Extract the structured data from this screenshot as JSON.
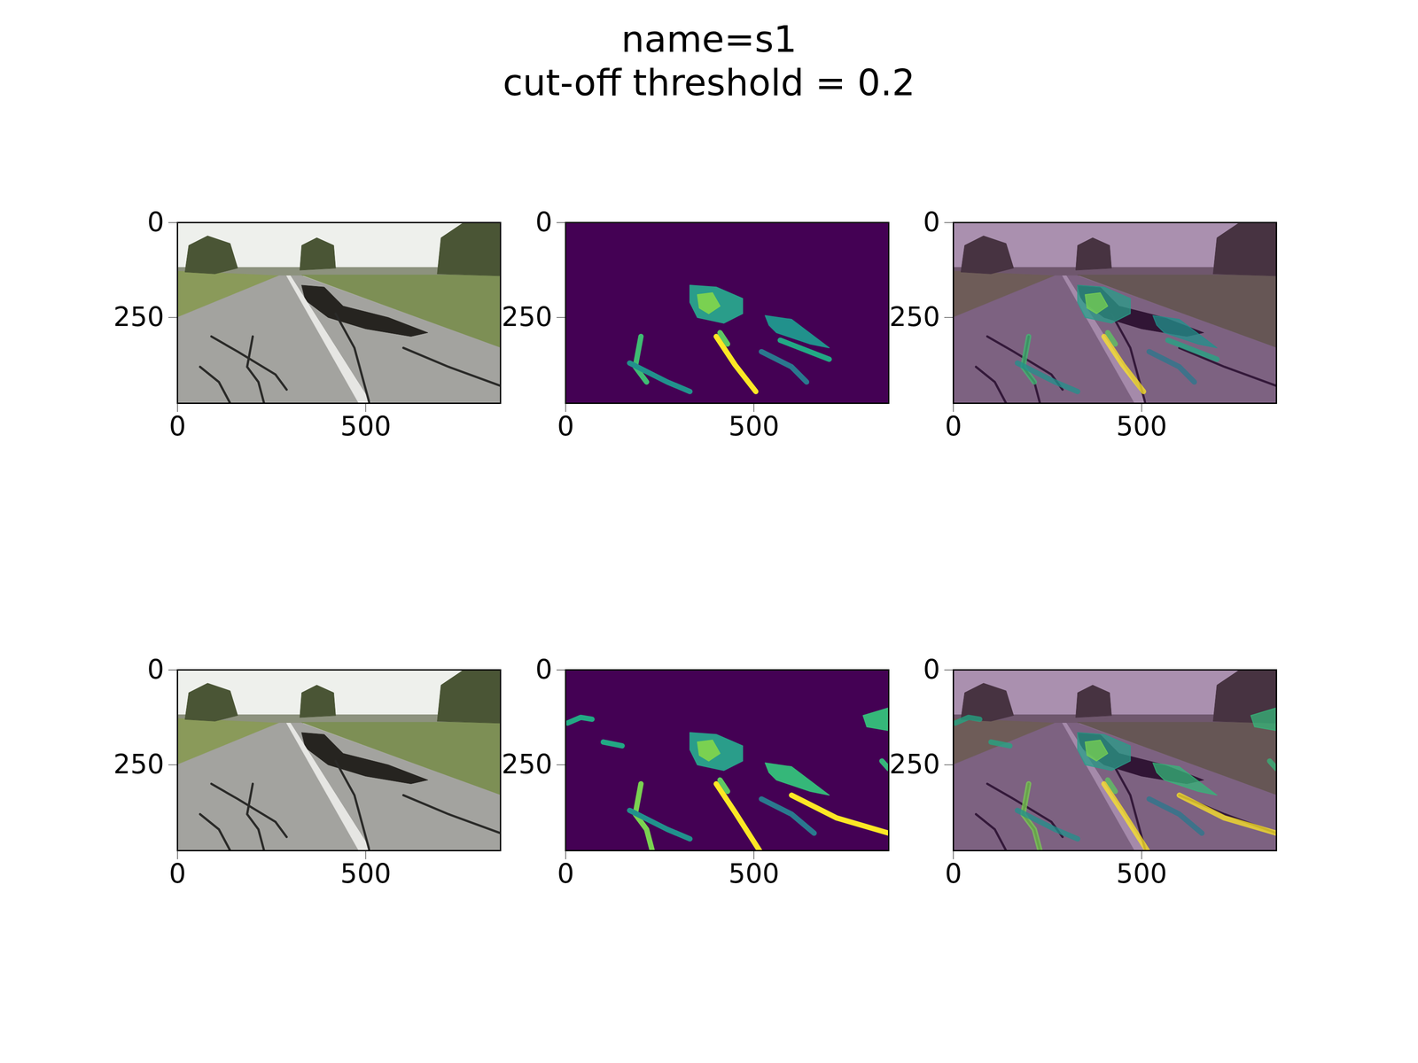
{
  "chart_data": {
    "type": "image_grid",
    "title": "name=s1",
    "subtitle": "cut-off threshold = 0.2",
    "xlim": [
      0,
      858
    ],
    "ylim": [
      476,
      0
    ],
    "xticks": [
      0,
      500
    ],
    "yticks": [
      0,
      250
    ],
    "columns": [
      {
        "type": "photo"
      },
      {
        "type": "heatmap",
        "color": "#440154"
      },
      {
        "type": "overlay",
        "color": "#440154"
      }
    ],
    "scene": {
      "regions": [
        {
          "color": "#eef0ec",
          "points": [
            [
              0,
              0
            ],
            [
              858,
              0
            ],
            [
              858,
              476
            ],
            [
              0,
              476
            ]
          ]
        },
        {
          "color": "#8d927e",
          "points": [
            [
              0,
              118
            ],
            [
              858,
              118
            ],
            [
              858,
              140
            ],
            [
              0,
              140
            ]
          ]
        },
        {
          "color": "#8a9a5a",
          "points": [
            [
              0,
              128
            ],
            [
              270,
              140
            ],
            [
              120,
              210
            ],
            [
              0,
              250
            ]
          ]
        },
        {
          "color": "#7d8f55",
          "points": [
            [
              330,
              138
            ],
            [
              858,
              138
            ],
            [
              858,
              330
            ]
          ]
        },
        {
          "color": "#a3a39f",
          "points": [
            [
              270,
              140
            ],
            [
              330,
              140
            ],
            [
              858,
              330
            ],
            [
              858,
              476
            ],
            [
              0,
              476
            ],
            [
              0,
              250
            ]
          ]
        },
        {
          "color": "#4a5535",
          "points": [
            [
              20,
              130
            ],
            [
              30,
              60
            ],
            [
              80,
              35
            ],
            [
              140,
              55
            ],
            [
              160,
              120
            ],
            [
              100,
              135
            ]
          ]
        },
        {
          "color": "#4a5535",
          "points": [
            [
              325,
              125
            ],
            [
              330,
              60
            ],
            [
              370,
              40
            ],
            [
              415,
              60
            ],
            [
              420,
              120
            ]
          ]
        },
        {
          "color": "#4a5535",
          "points": [
            [
              690,
              135
            ],
            [
              700,
              40
            ],
            [
              760,
              0
            ],
            [
              858,
              0
            ],
            [
              858,
              140
            ]
          ]
        },
        {
          "color": "#262420",
          "points": [
            [
              330,
              165
            ],
            [
              390,
              170
            ],
            [
              440,
              220
            ],
            [
              560,
              250
            ],
            [
              665,
              290
            ],
            [
              620,
              300
            ],
            [
              500,
              280
            ],
            [
              400,
              250
            ],
            [
              340,
              205
            ]
          ]
        },
        {
          "color": "#e6e6e3",
          "points": [
            [
              290,
              140
            ],
            [
              300,
              140
            ],
            [
              515,
              476
            ],
            [
              482,
              476
            ]
          ]
        }
      ],
      "cracks": [
        {
          "color": "#2a2a28",
          "points": [
            [
              90,
              300
            ],
            [
              160,
              340
            ],
            [
              260,
              400
            ],
            [
              290,
              440
            ]
          ]
        },
        {
          "color": "#2a2a28",
          "points": [
            [
              420,
              240
            ],
            [
              470,
              330
            ],
            [
              510,
              476
            ]
          ]
        },
        {
          "color": "#2a2a28",
          "points": [
            [
              600,
              330
            ],
            [
              720,
              380
            ],
            [
              858,
              430
            ]
          ]
        },
        {
          "color": "#2a2a28",
          "points": [
            [
              200,
              300
            ],
            [
              185,
              380
            ],
            [
              215,
              420
            ],
            [
              230,
              476
            ]
          ]
        },
        {
          "color": "#2a2a28",
          "points": [
            [
              60,
              380
            ],
            [
              110,
              420
            ],
            [
              140,
              476
            ]
          ]
        }
      ]
    },
    "rows": [
      {
        "patches": [
          {
            "color": "#2a9d8a",
            "points": [
              [
                330,
                165
              ],
              [
                400,
                170
              ],
              [
                470,
                200
              ],
              [
                470,
                240
              ],
              [
                420,
                265
              ],
              [
                350,
                250
              ],
              [
                330,
                210
              ]
            ]
          },
          {
            "color": "#7ad151",
            "points": [
              [
                350,
                190
              ],
              [
                390,
                185
              ],
              [
                410,
                220
              ],
              [
                380,
                240
              ],
              [
                355,
                225
              ]
            ]
          },
          {
            "color": "#21918c",
            "points": [
              [
                530,
                245
              ],
              [
                600,
                255
              ],
              [
                700,
                330
              ],
              [
                650,
                320
              ],
              [
                560,
                290
              ],
              [
                540,
                270
              ]
            ]
          }
        ],
        "traces": [
          {
            "color": "#fde725",
            "points": [
              [
                400,
                300
              ],
              [
                450,
                375
              ],
              [
                505,
                445
              ]
            ]
          },
          {
            "color": "#5ec962",
            "points": [
              [
                410,
                290
              ],
              [
                430,
                320
              ]
            ]
          },
          {
            "color": "#3fbc73",
            "points": [
              [
                200,
                300
              ],
              [
                185,
                380
              ],
              [
                215,
                420
              ]
            ]
          },
          {
            "color": "#21918c",
            "points": [
              [
                170,
                370
              ],
              [
                270,
                420
              ],
              [
                330,
                445
              ]
            ]
          },
          {
            "color": "#2a788e",
            "points": [
              [
                520,
                340
              ],
              [
                600,
                380
              ],
              [
                640,
                420
              ]
            ]
          },
          {
            "color": "#22a884",
            "points": [
              [
                570,
                310
              ],
              [
                700,
                360
              ]
            ]
          }
        ]
      },
      {
        "patches": [
          {
            "color": "#2a9d8a",
            "points": [
              [
                330,
                165
              ],
              [
                400,
                170
              ],
              [
                470,
                200
              ],
              [
                470,
                240
              ],
              [
                420,
                265
              ],
              [
                350,
                250
              ],
              [
                330,
                210
              ]
            ]
          },
          {
            "color": "#7ad151",
            "points": [
              [
                350,
                190
              ],
              [
                390,
                185
              ],
              [
                410,
                220
              ],
              [
                380,
                240
              ],
              [
                355,
                225
              ]
            ]
          },
          {
            "color": "#35b779",
            "points": [
              [
                530,
                245
              ],
              [
                600,
                255
              ],
              [
                700,
                330
              ],
              [
                650,
                320
              ],
              [
                560,
                290
              ],
              [
                540,
                270
              ]
            ]
          },
          {
            "color": "#35b779",
            "points": [
              [
                790,
                120
              ],
              [
                858,
                100
              ],
              [
                858,
                160
              ],
              [
                800,
                150
              ]
            ]
          }
        ],
        "traces": [
          {
            "color": "#fde725",
            "points": [
              [
                400,
                300
              ],
              [
                450,
                375
              ],
              [
                515,
                476
              ]
            ]
          },
          {
            "color": "#fde725",
            "points": [
              [
                600,
                330
              ],
              [
                720,
                390
              ],
              [
                858,
                430
              ]
            ]
          },
          {
            "color": "#5ec962",
            "points": [
              [
                410,
                290
              ],
              [
                430,
                320
              ]
            ]
          },
          {
            "color": "#7ad151",
            "points": [
              [
                200,
                300
              ],
              [
                185,
                380
              ],
              [
                215,
                420
              ],
              [
                230,
                476
              ]
            ]
          },
          {
            "color": "#21918c",
            "points": [
              [
                170,
                370
              ],
              [
                270,
                420
              ],
              [
                330,
                445
              ]
            ]
          },
          {
            "color": "#2a788e",
            "points": [
              [
                520,
                340
              ],
              [
                600,
                380
              ],
              [
                660,
                430
              ]
            ]
          },
          {
            "color": "#22a884",
            "points": [
              [
                5,
                140
              ],
              [
                40,
                125
              ],
              [
                70,
                130
              ]
            ]
          },
          {
            "color": "#22a884",
            "points": [
              [
                100,
                190
              ],
              [
                150,
                200
              ]
            ]
          },
          {
            "color": "#35b779",
            "points": [
              [
                840,
                240
              ],
              [
                858,
                260
              ]
            ]
          }
        ]
      }
    ]
  }
}
